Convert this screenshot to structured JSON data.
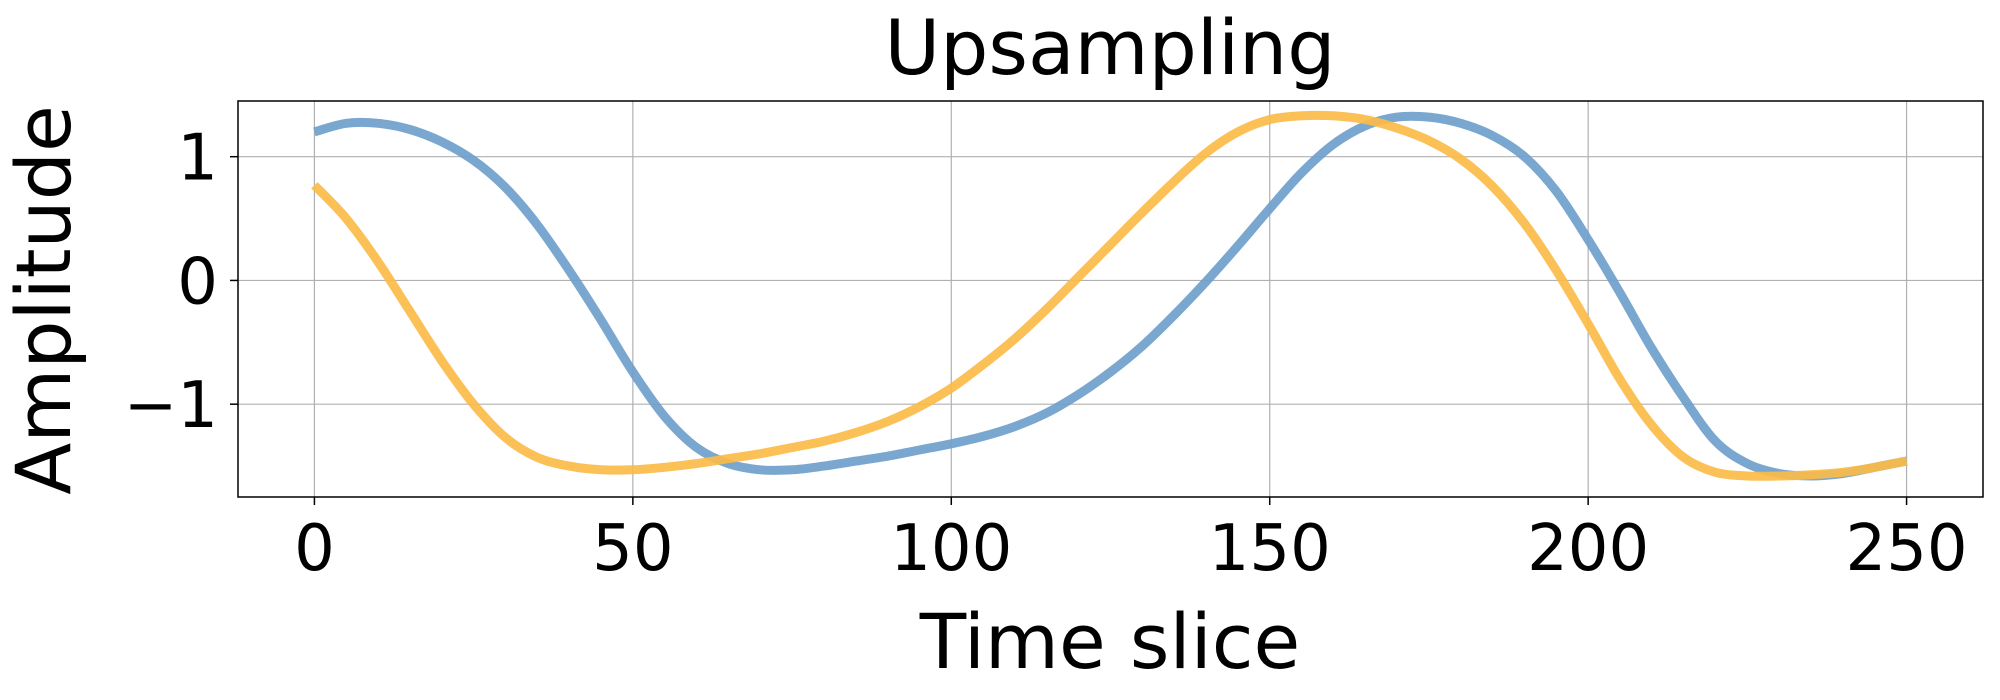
{
  "chart_data": {
    "type": "line",
    "title": "Upsampling",
    "xlabel": "Time slice",
    "ylabel": "Amplitude",
    "xlim": [
      -12,
      262
    ],
    "ylim": [
      -1.75,
      1.45
    ],
    "xticks": [
      0,
      50,
      100,
      150,
      200,
      250
    ],
    "xtick_labels": [
      "0",
      "50",
      "100",
      "150",
      "200",
      "250"
    ],
    "yticks": [
      1,
      0,
      -1
    ],
    "ytick_labels": [
      "1",
      "0",
      "−1"
    ],
    "grid": true,
    "legend": false,
    "series": [
      {
        "color": "#6f9fcb",
        "x": [
          0,
          5,
          10,
          15,
          20,
          25,
          30,
          35,
          40,
          45,
          50,
          55,
          60,
          65,
          70,
          75,
          80,
          85,
          90,
          95,
          100,
          105,
          110,
          115,
          120,
          125,
          130,
          135,
          140,
          145,
          150,
          155,
          160,
          165,
          170,
          175,
          180,
          185,
          190,
          195,
          200,
          205,
          210,
          215,
          220,
          225,
          230,
          235,
          240,
          245,
          250
        ],
        "y": [
          1.2,
          1.27,
          1.27,
          1.22,
          1.12,
          0.97,
          0.75,
          0.45,
          0.08,
          -0.32,
          -0.74,
          -1.1,
          -1.35,
          -1.48,
          -1.53,
          -1.53,
          -1.5,
          -1.46,
          -1.42,
          -1.37,
          -1.32,
          -1.26,
          -1.18,
          -1.07,
          -0.92,
          -0.74,
          -0.53,
          -0.28,
          -0.01,
          0.28,
          0.58,
          0.87,
          1.1,
          1.25,
          1.32,
          1.32,
          1.27,
          1.17,
          1.0,
          0.72,
          0.33,
          -0.1,
          -0.55,
          -0.95,
          -1.3,
          -1.48,
          -1.56,
          -1.58,
          -1.56,
          -1.51,
          -1.46
        ]
      },
      {
        "color": "#fbbb48",
        "x": [
          0,
          5,
          10,
          15,
          20,
          25,
          30,
          35,
          40,
          45,
          50,
          55,
          60,
          65,
          70,
          75,
          80,
          85,
          90,
          95,
          100,
          105,
          110,
          115,
          120,
          125,
          130,
          135,
          140,
          145,
          150,
          155,
          160,
          165,
          170,
          175,
          180,
          185,
          190,
          195,
          200,
          205,
          210,
          215,
          220,
          225,
          230,
          235,
          240,
          245,
          250
        ],
        "y": [
          0.77,
          0.5,
          0.15,
          -0.25,
          -0.65,
          -1.0,
          -1.27,
          -1.43,
          -1.5,
          -1.53,
          -1.53,
          -1.51,
          -1.48,
          -1.44,
          -1.4,
          -1.35,
          -1.3,
          -1.23,
          -1.14,
          -1.02,
          -0.87,
          -0.68,
          -0.47,
          -0.23,
          0.03,
          0.29,
          0.55,
          0.8,
          1.03,
          1.2,
          1.3,
          1.33,
          1.33,
          1.3,
          1.23,
          1.13,
          0.98,
          0.76,
          0.46,
          0.08,
          -0.35,
          -0.8,
          -1.17,
          -1.43,
          -1.55,
          -1.58,
          -1.58,
          -1.57,
          -1.55,
          -1.51,
          -1.46
        ]
      }
    ]
  }
}
